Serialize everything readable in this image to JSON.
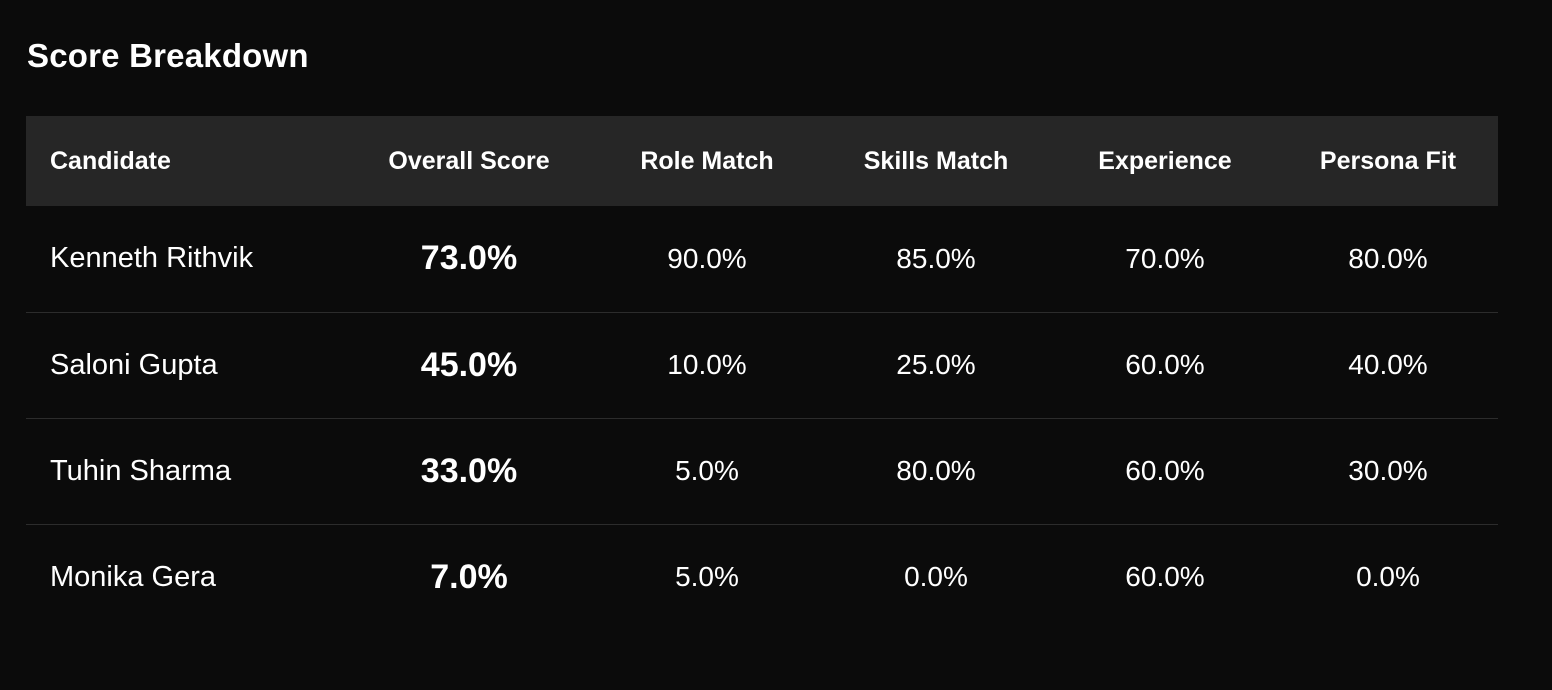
{
  "title": "Score Breakdown",
  "table": {
    "headers": [
      "Candidate",
      "Overall Score",
      "Role Match",
      "Skills Match",
      "Experience",
      "Persona Fit"
    ],
    "rows": [
      [
        "Kenneth Rithvik",
        "73.0%",
        "90.0%",
        "85.0%",
        "70.0%",
        "80.0%"
      ],
      [
        "Saloni Gupta",
        "45.0%",
        "10.0%",
        "25.0%",
        "60.0%",
        "40.0%"
      ],
      [
        "Tuhin Sharma",
        "33.0%",
        "5.0%",
        "80.0%",
        "60.0%",
        "30.0%"
      ],
      [
        "Monika Gera",
        "7.0%",
        "5.0%",
        "0.0%",
        "60.0%",
        "0.0%"
      ]
    ]
  },
  "colors": {
    "background": "#0b0b0b",
    "header_background": "#262626",
    "row_divider": "#2c2c2c",
    "text": "#ffffff"
  }
}
